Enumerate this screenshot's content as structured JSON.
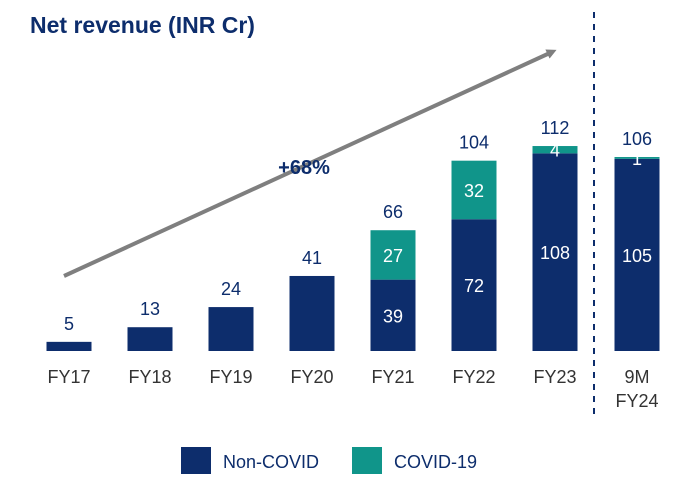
{
  "chart_title": "Net revenue (INR Cr)",
  "growth_label": "+68%",
  "colors": {
    "non_covid": "#0d2d6c",
    "covid": "#10958a",
    "arrow": "#7f7f7f",
    "divider": "#0d2d6c"
  },
  "chart_data": {
    "type": "bar",
    "stacked": true,
    "title": "Net revenue (INR Cr)",
    "categories": [
      "FY17",
      "FY18",
      "FY19",
      "FY20",
      "FY21",
      "FY22",
      "FY23",
      "9M FY24"
    ],
    "category_lines": [
      [
        "FY17"
      ],
      [
        "FY18"
      ],
      [
        "FY19"
      ],
      [
        "FY20"
      ],
      [
        "FY21"
      ],
      [
        "FY22"
      ],
      [
        "FY23"
      ],
      [
        "9M",
        "FY24"
      ]
    ],
    "series": [
      {
        "name": "Non-COVID",
        "values": [
          5,
          13,
          24,
          41,
          39,
          72,
          108,
          105
        ]
      },
      {
        "name": "COVID-19",
        "values": [
          0,
          0,
          0,
          0,
          27,
          32,
          4,
          1
        ]
      }
    ],
    "totals": [
      5,
      13,
      24,
      41,
      66,
      104,
      112,
      106
    ],
    "show_segment_labels": [
      false,
      false,
      false,
      false,
      true,
      true,
      true,
      true
    ],
    "annotation": "+68%",
    "legend": [
      "Non-COVID",
      "COVID-19"
    ],
    "legend_position": "bottom",
    "grid": false,
    "ylim": [
      0,
      112
    ]
  }
}
